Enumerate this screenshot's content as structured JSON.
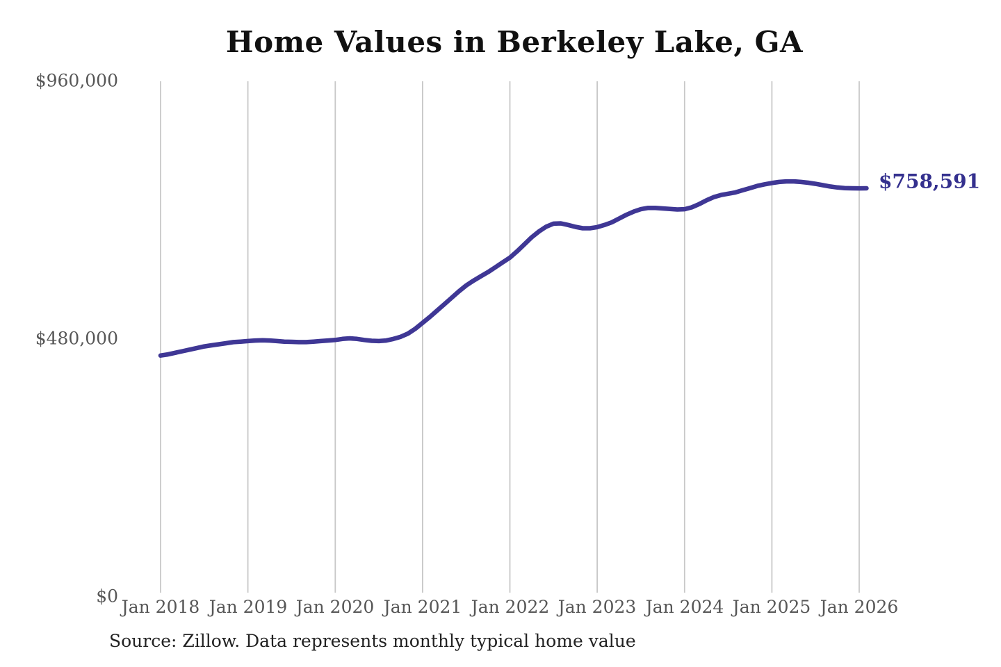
{
  "chart": {
    "title": "Home Values in Berkeley Lake, GA"
  },
  "chart_data": {
    "type": "line",
    "title": "Home Values in Berkeley Lake, GA",
    "series_name": "Monthly typical home value",
    "unit": "USD",
    "x_start": "2018-01",
    "x_freq": "monthly",
    "x_tick_labels": [
      "Jan 2018",
      "Jan 2019",
      "Jan 2020",
      "Jan 2021",
      "Jan 2022",
      "Jan 2023",
      "Jan 2024",
      "Jan 2025",
      "Jan 2026"
    ],
    "y_tick_labels": [
      "$960,000",
      "$480,000",
      "$0"
    ],
    "y_tick_values": [
      960000,
      480000,
      0
    ],
    "ylim": [
      0,
      960000
    ],
    "grid": "vertical-only",
    "grid_color": "#c8c8c8",
    "line_color": "#3f3795",
    "end_label": "$758,591",
    "end_label_color": "#34308e",
    "end_value": 758591,
    "values": [
      446000,
      448000,
      451000,
      454000,
      457000,
      460000,
      463000,
      465000,
      467000,
      469000,
      471000,
      472000,
      473000,
      474000,
      474500,
      474000,
      473000,
      472000,
      471500,
      471000,
      471000,
      472000,
      473000,
      474000,
      475000,
      477000,
      478000,
      477000,
      475000,
      473500,
      473000,
      474000,
      477000,
      481000,
      487000,
      496000,
      507000,
      518000,
      530000,
      542000,
      554000,
      566000,
      577000,
      586000,
      594000,
      602000,
      611000,
      620000,
      629000,
      641000,
      654000,
      667000,
      678000,
      687000,
      692500,
      693000,
      690000,
      686500,
      684000,
      684000,
      686000,
      690000,
      695000,
      702000,
      709000,
      715000,
      719500,
      722000,
      722000,
      721000,
      720000,
      719000,
      719500,
      723000,
      729000,
      736000,
      742000,
      746000,
      748500,
      751000,
      755000,
      759000,
      763000,
      766000,
      768500,
      770500,
      771500,
      771500,
      770500,
      769000,
      767000,
      764500,
      762000,
      760200,
      759000,
      758600,
      758500,
      758591
    ]
  },
  "footer": {
    "source": "Source: Zillow. Data represents monthly typical home value"
  }
}
